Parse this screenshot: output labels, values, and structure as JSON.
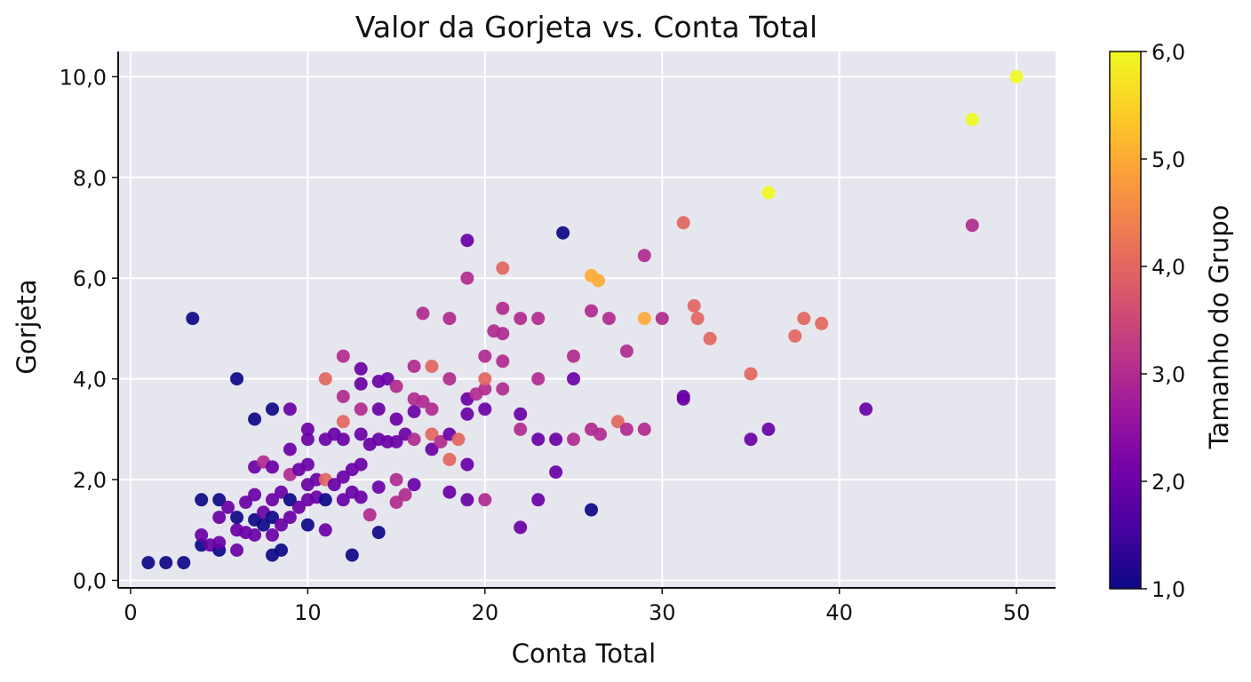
{
  "chart_data": {
    "type": "scatter",
    "title": "Valor da Gorjeta vs. Conta Total",
    "xlabel": "Conta Total",
    "ylabel": "Gorjeta",
    "xlim": [
      -0.7,
      52.2
    ],
    "ylim": [
      -0.15,
      10.5
    ],
    "xticks": [
      0,
      10,
      20,
      30,
      40,
      50
    ],
    "xtick_labels": [
      "0",
      "10",
      "20",
      "30",
      "40",
      "50"
    ],
    "yticks": [
      0,
      2,
      4,
      6,
      8,
      10
    ],
    "ytick_labels": [
      "0,0",
      "2,0",
      "4,0",
      "6,0",
      "8,0",
      "10,0"
    ],
    "grid": true,
    "background": "#e6e7ee",
    "colorbar": {
      "label": "Tamanho do Grupo",
      "colormap": "plasma",
      "range": [
        1,
        6
      ],
      "ticks": [
        1,
        2,
        3,
        4,
        5,
        6
      ],
      "tick_labels": [
        "1,0",
        "2,0",
        "3,0",
        "4,0",
        "5,0",
        "6,0"
      ]
    },
    "series": [
      {
        "x": [
          1.0,
          2.0,
          3.0,
          3.5,
          4.0,
          4.0,
          4.0,
          4.5,
          5.0,
          5.0,
          5.0,
          5.0,
          5.5,
          6.0,
          6.0,
          6.0,
          6.0,
          6.5,
          6.5,
          7.0,
          7.0,
          7.0,
          7.0,
          7.0,
          7.5,
          7.5,
          7.5,
          8.0,
          8.0,
          8.0,
          8.0,
          8.0,
          8.0,
          8.5,
          8.5,
          8.5,
          9.0,
          9.0,
          9.0,
          9.0,
          9.0,
          9.5,
          9.5,
          10.0,
          10.0,
          10.0,
          10.0,
          10.0,
          10.0,
          10.5,
          10.5,
          11.0,
          11.0,
          11.0,
          11.0,
          11.0,
          11.5,
          11.5,
          12.0,
          12.0,
          12.0,
          12.0,
          12.0,
          12.0,
          12.5,
          12.5,
          12.5,
          13.0,
          13.0,
          13.0,
          13.0,
          13.0,
          13.0,
          13.5,
          13.5,
          14.0,
          14.0,
          14.0,
          14.0,
          14.0,
          14.5,
          14.5,
          15.0,
          15.0,
          15.0,
          15.0,
          15.0,
          15.5,
          15.5,
          16.0,
          16.0,
          16.0,
          16.0,
          16.0,
          16.5,
          16.5,
          17.0,
          17.0,
          17.0,
          17.0,
          17.5,
          18.0,
          18.0,
          18.0,
          18.0,
          18.0,
          18.5,
          19.0,
          19.0,
          19.0,
          19.0,
          19.0,
          19.0,
          19.5,
          20.0,
          20.0,
          20.0,
          20.0,
          20.0,
          20.5,
          21.0,
          21.0,
          21.0,
          21.0,
          21.0,
          22.0,
          22.0,
          22.0,
          22.0,
          23.0,
          23.0,
          23.0,
          23.0,
          24.0,
          24.0,
          24.4,
          25.0,
          25.0,
          25.0,
          26.0,
          26.0,
          26.0,
          26.0,
          26.4,
          26.5,
          27.0,
          27.5,
          28.0,
          28.0,
          29.0,
          29.0,
          29.0,
          30.0,
          31.2,
          31.2,
          31.2,
          31.8,
          32.0,
          32.7,
          35.0,
          35.0,
          36.0,
          36.0,
          37.5,
          38.0,
          39.0,
          41.5,
          47.5,
          47.5,
          50.0
        ],
        "y": [
          0.35,
          0.35,
          0.35,
          5.2,
          0.7,
          0.9,
          1.6,
          0.7,
          0.6,
          0.75,
          1.25,
          1.6,
          1.45,
          0.6,
          1.0,
          1.25,
          4.0,
          0.95,
          1.55,
          0.9,
          1.2,
          1.7,
          2.25,
          3.2,
          1.1,
          1.35,
          2.35,
          0.5,
          0.9,
          1.25,
          1.6,
          2.25,
          3.4,
          0.6,
          1.1,
          1.75,
          1.25,
          1.6,
          2.1,
          2.6,
          3.4,
          1.45,
          2.2,
          1.1,
          1.6,
          1.9,
          2.3,
          2.8,
          3.0,
          1.65,
          2.0,
          1.0,
          1.6,
          2.0,
          2.8,
          4.0,
          1.9,
          2.9,
          1.6,
          2.05,
          2.8,
          3.15,
          3.65,
          4.45,
          0.5,
          1.75,
          2.2,
          1.65,
          2.3,
          2.9,
          3.4,
          3.9,
          4.2,
          1.3,
          2.7,
          0.95,
          1.85,
          2.8,
          3.4,
          3.95,
          2.75,
          4.0,
          1.55,
          2.0,
          2.75,
          3.2,
          3.85,
          1.7,
          2.9,
          1.9,
          2.8,
          3.35,
          3.6,
          4.25,
          3.55,
          5.3,
          2.6,
          2.9,
          3.4,
          4.25,
          2.75,
          1.75,
          2.4,
          2.9,
          4.0,
          5.2,
          2.8,
          1.6,
          2.3,
          3.3,
          3.6,
          6.0,
          6.75,
          3.7,
          1.6,
          3.4,
          3.8,
          4.0,
          4.45,
          4.95,
          3.8,
          4.35,
          4.9,
          5.4,
          6.2,
          1.05,
          3.0,
          3.3,
          5.2,
          1.6,
          2.8,
          4.0,
          5.2,
          2.15,
          2.8,
          6.9,
          2.8,
          4.0,
          4.45,
          1.4,
          3.0,
          5.35,
          6.05,
          5.95,
          2.9,
          5.2,
          3.15,
          3.0,
          4.55,
          3.0,
          5.2,
          6.45,
          5.2,
          3.6,
          3.65,
          7.1,
          5.45,
          5.2,
          4.8,
          2.8,
          4.1,
          3.0,
          7.7,
          4.85,
          5.2,
          5.1,
          3.4,
          7.05,
          9.15,
          10.0
        ],
        "size": [
          1,
          1,
          1,
          1,
          1,
          2,
          1,
          2,
          1,
          2,
          2,
          1,
          2,
          2,
          2,
          1,
          1,
          2,
          2,
          2,
          1,
          2,
          2,
          1,
          1,
          2,
          3,
          1,
          2,
          1,
          2,
          2,
          1,
          1,
          2,
          2,
          2,
          1,
          3,
          2,
          2,
          2,
          2,
          1,
          2,
          2,
          2,
          2,
          2,
          2,
          2,
          2,
          1,
          4,
          2,
          4,
          2,
          2,
          2,
          2,
          2,
          4,
          3,
          3,
          1,
          2,
          2,
          2,
          2,
          2,
          3,
          2,
          2,
          3,
          2,
          1,
          2,
          2,
          2,
          2,
          2,
          2,
          3,
          3,
          2,
          2,
          3,
          3,
          2,
          2,
          3,
          2,
          3,
          3,
          3,
          3,
          2,
          4,
          3,
          4,
          3,
          2,
          4,
          2,
          3,
          3,
          4,
          2,
          2,
          2,
          2,
          3,
          2,
          3,
          3,
          2,
          3,
          4,
          3,
          3,
          3,
          3,
          3,
          3,
          4,
          2,
          3,
          2,
          3,
          2,
          2,
          3,
          3,
          2,
          2,
          1,
          3,
          2,
          3,
          1,
          3,
          3,
          5,
          5,
          3,
          3,
          4,
          3,
          3,
          3,
          5,
          3,
          3,
          2,
          2,
          4,
          4,
          4,
          4,
          2,
          4,
          2,
          6,
          4,
          4,
          4,
          2,
          3,
          6,
          6
        ]
      }
    ]
  }
}
